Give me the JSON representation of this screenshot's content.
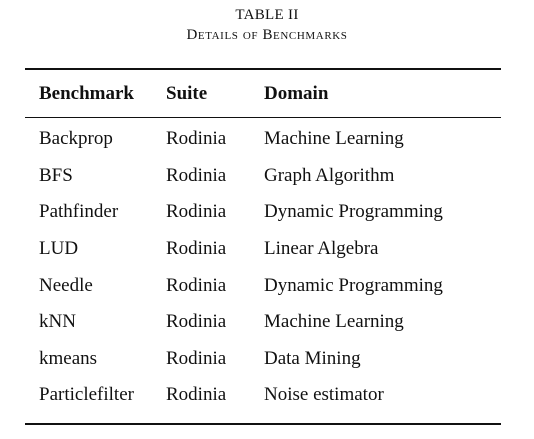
{
  "caption": {
    "number": "TABLE II",
    "title": "Details of Benchmarks"
  },
  "table": {
    "headers": [
      "Benchmark",
      "Suite",
      "Domain"
    ],
    "rows": [
      [
        "Backprop",
        "Rodinia",
        "Machine Learning"
      ],
      [
        "BFS",
        "Rodinia",
        "Graph Algorithm"
      ],
      [
        "Pathfinder",
        "Rodinia",
        "Dynamic Programming"
      ],
      [
        "LUD",
        "Rodinia",
        "Linear Algebra"
      ],
      [
        "Needle",
        "Rodinia",
        "Dynamic Programming"
      ],
      [
        "kNN",
        "Rodinia",
        "Machine Learning"
      ],
      [
        "kmeans",
        "Rodinia",
        "Data Mining"
      ],
      [
        "Particlefilter",
        "Rodinia",
        "Noise estimator"
      ]
    ]
  }
}
